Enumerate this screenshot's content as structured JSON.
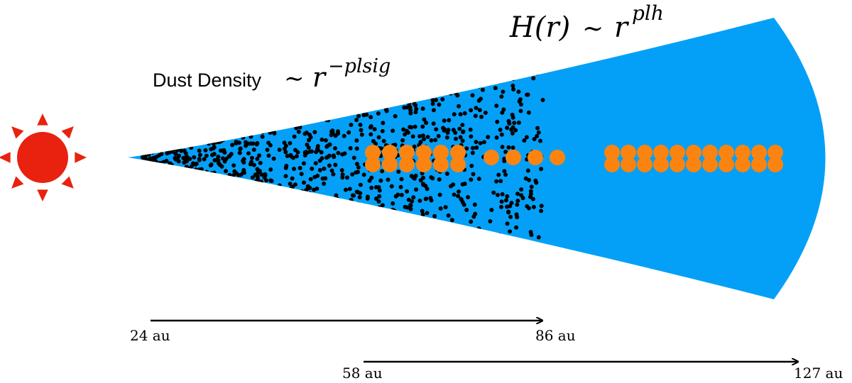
{
  "annotations": {
    "dust_density": {
      "label": "Dust Density",
      "symbol": "∼",
      "base": "r",
      "exponent": "−plsig"
    },
    "scale_height": {
      "label": "H(r)",
      "symbol": "∼",
      "base": "r",
      "exponent": "plh"
    }
  },
  "arrows": [
    {
      "start": "24 au",
      "end": "86 au"
    },
    {
      "start": "58 au",
      "end": "127 au"
    }
  ]
}
